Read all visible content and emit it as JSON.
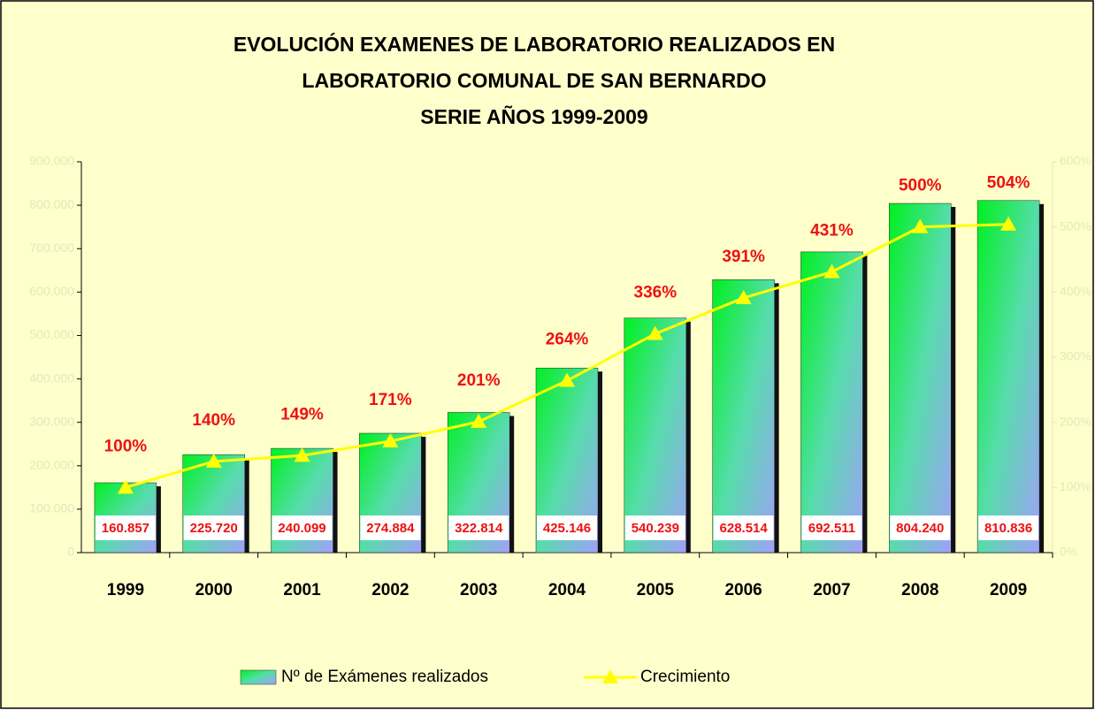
{
  "chart_data": {
    "type": "bar",
    "title": [
      "EVOLUCIÓN EXAMENES DE LABORATORIO REALIZADOS EN",
      "LABORATORIO COMUNAL DE SAN BERNARDO",
      "SERIE AÑOS 1999-2009"
    ],
    "categories": [
      "1999",
      "2000",
      "2001",
      "2002",
      "2003",
      "2004",
      "2005",
      "2006",
      "2007",
      "2008",
      "2009"
    ],
    "series": [
      {
        "name": "Nº de Exámenes realizados",
        "type": "bar",
        "color": "#00ee33",
        "values": [
          160857,
          225720,
          240099,
          274884,
          322814,
          425146,
          540239,
          628514,
          692511,
          804240,
          810836
        ],
        "value_labels": [
          "160.857",
          "225.720",
          "240.099",
          "274.884",
          "322.814",
          "425.146",
          "540.239",
          "628.514",
          "692.511",
          "804.240",
          "810.836"
        ]
      },
      {
        "name": "Crecimiento",
        "type": "line",
        "color": "#ffff00",
        "axis": "y2",
        "values": [
          100,
          140,
          149,
          171,
          201,
          264,
          336,
          391,
          431,
          500,
          504
        ],
        "value_labels": [
          "100%",
          "140%",
          "149%",
          "171%",
          "201%",
          "264%",
          "336%",
          "391%",
          "431%",
          "500%",
          "504%"
        ]
      }
    ],
    "ylim": [
      0,
      900000
    ],
    "yticks": [
      0,
      {
        "value": 100000,
        "label": "100.000"
      },
      {
        "value": 200000,
        "label": "200.000"
      },
      {
        "value": 300000,
        "label": "300.000"
      },
      {
        "value": 400000,
        "label": "400.000"
      },
      {
        "value": 500000,
        "label": "500.000"
      },
      {
        "value": 600000,
        "label": "600.000"
      },
      {
        "value": 700000,
        "label": "700.000"
      },
      {
        "value": 800000,
        "label": "800.000"
      },
      {
        "value": 900000,
        "label": "900.000"
      }
    ],
    "y2lim": [
      0,
      600
    ],
    "y2ticks": [
      {
        "value": 0,
        "label": "0%"
      },
      {
        "value": 100,
        "label": "100%"
      },
      {
        "value": 200,
        "label": "200%"
      },
      {
        "value": 300,
        "label": "300%"
      },
      {
        "value": 400,
        "label": "400%"
      },
      {
        "value": 500,
        "label": "500%"
      },
      {
        "value": 600,
        "label": "600%"
      }
    ],
    "legend": "bottom"
  }
}
